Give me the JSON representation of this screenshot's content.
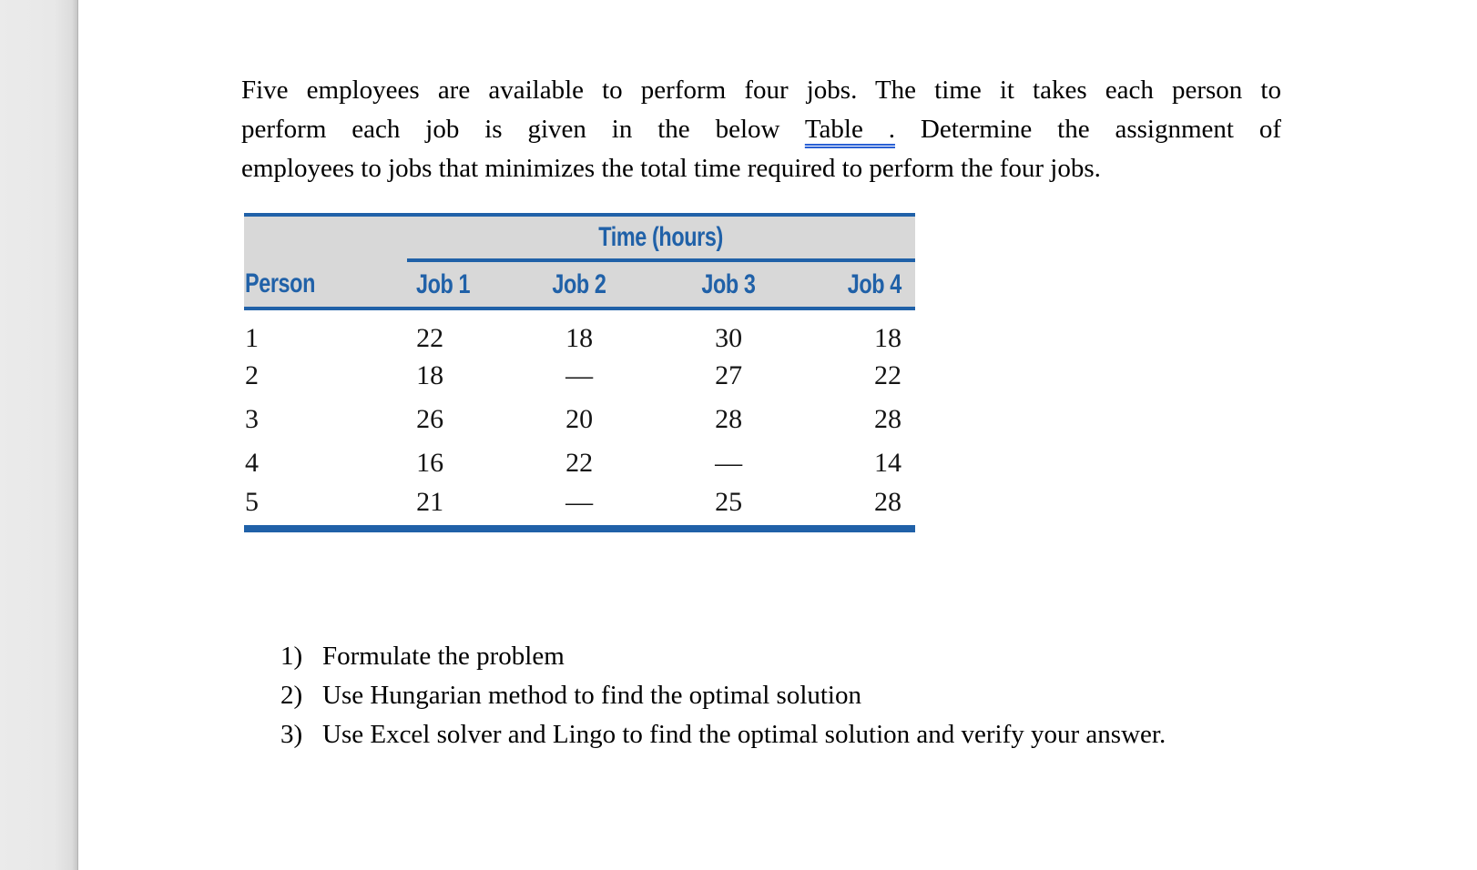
{
  "theme": {
    "accent_blue": "#2061a8",
    "link_blue": "#2a60d4",
    "header_bg": "#d8d8d8",
    "gutter_bg": "#e9e9e9",
    "text_color": "#111111"
  },
  "intro": {
    "line1": "Five employees are available to perform four jobs. The time it takes each person to",
    "line2_before_link": "perform each job is given in the below",
    "link_text": "Table .",
    "line2_after_link": "Determine the assignment of",
    "line3": "employees to jobs that minimizes the total time required to perform the four jobs."
  },
  "table": {
    "title": "Time (hours)",
    "col_person": "Person",
    "headers": [
      "Job 1",
      "Job 2",
      "Job 3",
      "Job 4"
    ],
    "rows": [
      {
        "person": "1",
        "job1": "22",
        "job2": "18",
        "job3": "30",
        "job4": "18"
      },
      {
        "person": "2",
        "job1": "18",
        "job2": "—",
        "job3": "27",
        "job4": "22"
      },
      {
        "person": "3",
        "job1": "26",
        "job2": "20",
        "job3": "28",
        "job4": "28"
      },
      {
        "person": "4",
        "job1": "16",
        "job2": "22",
        "job3": "—",
        "job4": "14"
      },
      {
        "person": "5",
        "job1": "21",
        "job2": "—",
        "job3": "25",
        "job4": "28"
      }
    ]
  },
  "tasks": {
    "items": [
      {
        "num": "1)",
        "text": "Formulate the problem"
      },
      {
        "num": "2)",
        "text": "Use Hungarian method to find the optimal solution"
      },
      {
        "num": "3)",
        "text": "Use Excel solver and Lingo to find the optimal solution and verify your answer."
      }
    ]
  }
}
